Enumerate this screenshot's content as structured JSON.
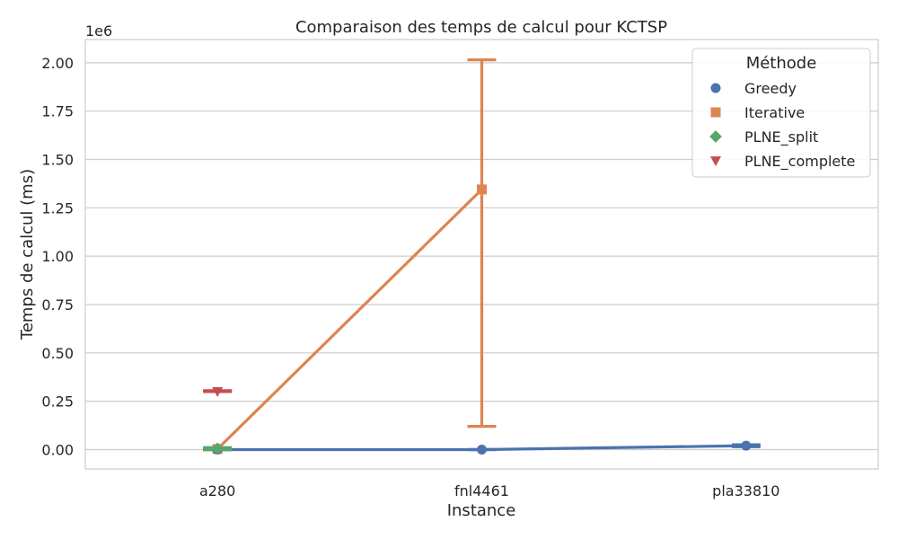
{
  "chart_data": {
    "type": "line",
    "title": "Comparaison des temps de calcul pour KCTSP",
    "xlabel": "Instance",
    "ylabel": "Temps de calcul (ms)",
    "y_offset_text": "1e6",
    "y_scale_multiplier": 1000000,
    "categories": [
      "a280",
      "fnl4461",
      "pla33810"
    ],
    "ylim": [
      -0.1,
      2.12
    ],
    "yticks": [
      0.0,
      0.25,
      0.5,
      0.75,
      1.0,
      1.25,
      1.5,
      1.75,
      2.0
    ],
    "ytick_labels": [
      "0.00",
      "0.25",
      "0.50",
      "0.75",
      "1.00",
      "1.25",
      "1.50",
      "1.75",
      "2.00"
    ],
    "grid": "horizontal",
    "legend": {
      "title": "Méthode",
      "placement": "top-right"
    },
    "series": [
      {
        "name": "Greedy",
        "color": "#4c72b0",
        "marker": "circle",
        "values": [
          0.0,
          0.0,
          0.02
        ],
        "ci_low": [
          0.0,
          0.0,
          0.015
        ],
        "ci_high": [
          0.0,
          0.0,
          0.025
        ]
      },
      {
        "name": "Iterative",
        "color": "#dd8452",
        "marker": "square",
        "values": [
          0.003,
          1.345,
          null
        ],
        "ci_low": [
          0.0,
          0.12,
          null
        ],
        "ci_high": [
          0.01,
          2.015,
          null
        ]
      },
      {
        "name": "PLNE_split",
        "color": "#55a868",
        "marker": "diamond",
        "values": [
          0.005,
          null,
          null
        ],
        "ci_low": [
          0.0,
          null,
          null
        ],
        "ci_high": [
          0.01,
          null,
          null
        ]
      },
      {
        "name": "PLNE_complete",
        "color": "#c44e52",
        "marker": "triangle-down",
        "values": [
          0.3,
          null,
          null
        ],
        "ci_low": [
          0.3,
          null,
          null
        ],
        "ci_high": [
          0.305,
          null,
          null
        ]
      }
    ]
  }
}
